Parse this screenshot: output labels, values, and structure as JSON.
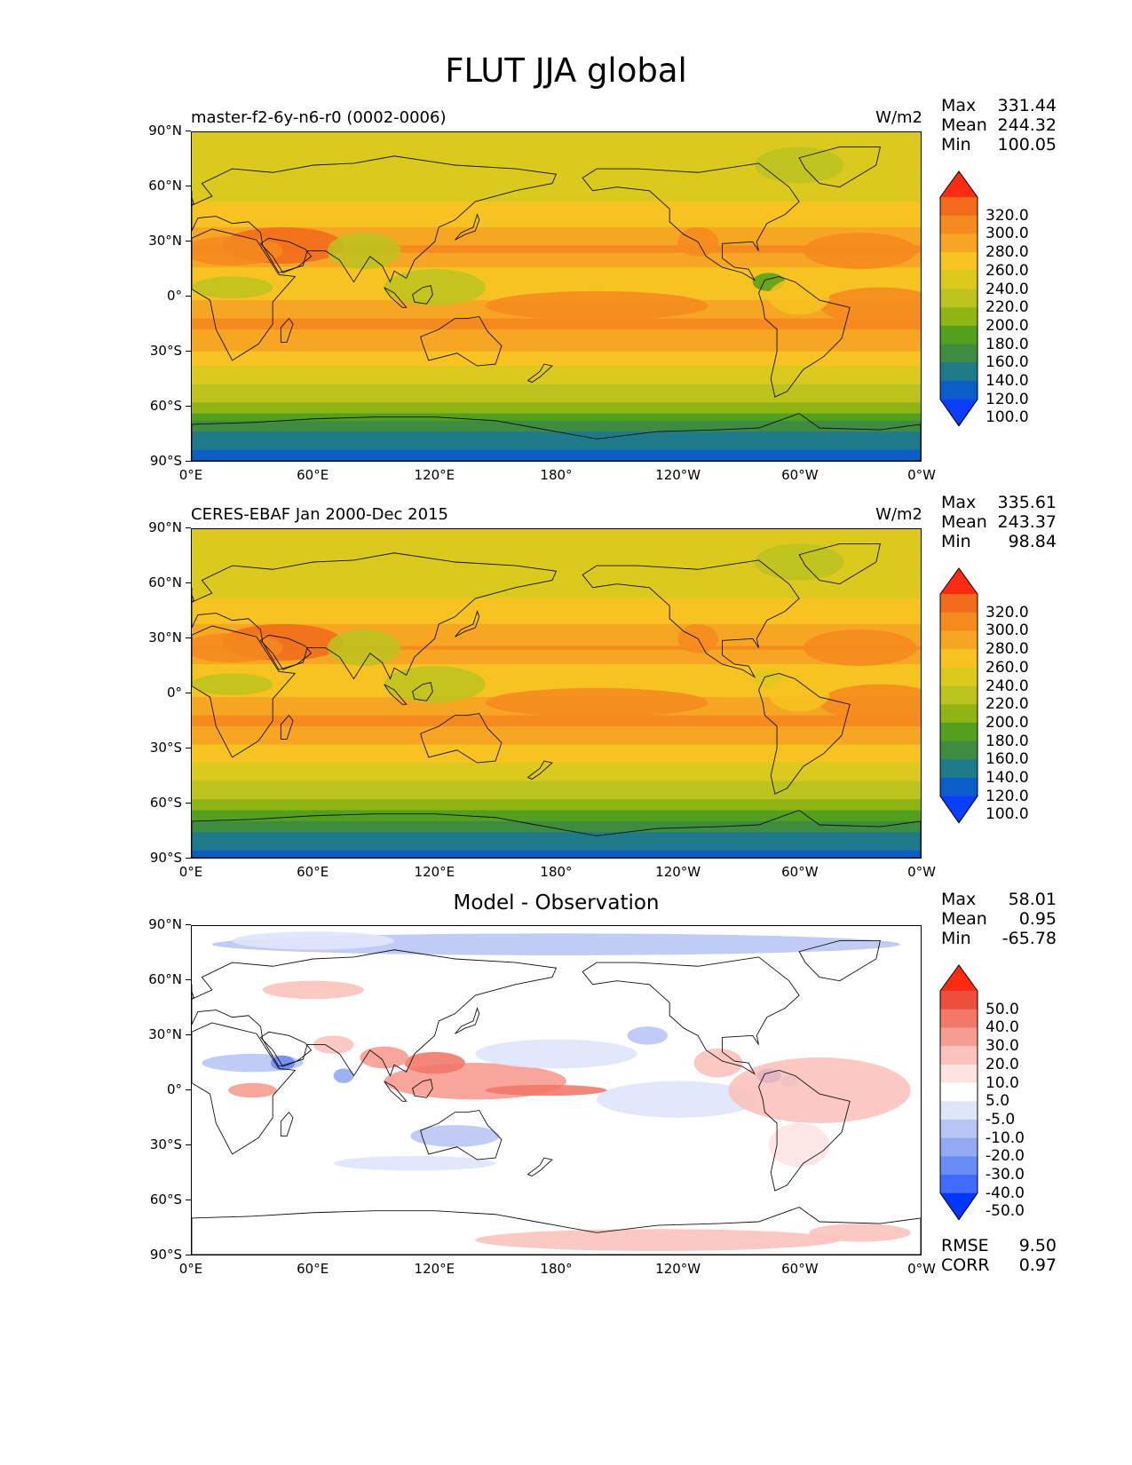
{
  "title": "FLUT JJA global",
  "y_ticks": [
    "90°N",
    "60°N",
    "30°N",
    "0°",
    "30°S",
    "60°S",
    "90°S"
  ],
  "x_ticks": [
    "0°E",
    "60°E",
    "120°E",
    "180°",
    "120°W",
    "60°W",
    "0°W"
  ],
  "panels": [
    {
      "title": "master-f2-6y-n6-r0 (0002-0006)",
      "units": "W/m2",
      "stats": {
        "max_label": "Max",
        "max": "331.44",
        "mean_label": "Mean",
        "mean": "244.32",
        "min_label": "Min",
        "min": "100.05"
      },
      "colorbar_labels": [
        "320.0",
        "300.0",
        "280.0",
        "260.0",
        "240.0",
        "220.0",
        "200.0",
        "180.0",
        "160.0",
        "140.0",
        "120.0",
        "100.0"
      ]
    },
    {
      "title": "CERES-EBAF Jan 2000-Dec 2015",
      "units": "W/m2",
      "stats": {
        "max_label": "Max",
        "max": "335.61",
        "mean_label": "Mean",
        "mean": "243.37",
        "min_label": "Min",
        "min": "98.84"
      },
      "colorbar_labels": [
        "320.0",
        "300.0",
        "280.0",
        "260.0",
        "240.0",
        "220.0",
        "200.0",
        "180.0",
        "160.0",
        "140.0",
        "120.0",
        "100.0"
      ]
    },
    {
      "title": "Model - Observation",
      "units": "",
      "stats": {
        "max_label": "Max",
        "max": "58.01",
        "mean_label": "Mean",
        "mean": "0.95",
        "min_label": "Min",
        "min": "-65.78"
      },
      "colorbar_labels": [
        "50.0",
        "40.0",
        "30.0",
        "20.0",
        "10.0",
        "5.0",
        "-5.0",
        "-10.0",
        "-20.0",
        "-30.0",
        "-40.0",
        "-50.0"
      ],
      "footer": {
        "rmse_label": "RMSE",
        "rmse": "9.50",
        "corr_label": "CORR",
        "corr": "0.97"
      }
    }
  ],
  "chart_data": [
    {
      "type": "heatmap",
      "title": "master-f2-6y-n6-r0 (0002-0006)",
      "units": "W/m2",
      "lon_range": [
        0,
        360
      ],
      "lat_range": [
        -90,
        90
      ],
      "levels": [
        100,
        120,
        140,
        160,
        180,
        200,
        220,
        240,
        260,
        280,
        300,
        320
      ],
      "colors": [
        "#0b3dff",
        "#0a5ec8",
        "#1f7a8a",
        "#3d8c40",
        "#52a01c",
        "#8fb515",
        "#bcc31f",
        "#dcc91e",
        "#f6c320",
        "#f6a623",
        "#f58a1e",
        "#f26a1b",
        "#ff2b10"
      ],
      "zonal_profile": [
        {
          "lat": 80,
          "value": 225
        },
        {
          "lat": 60,
          "value": 230
        },
        {
          "lat": 40,
          "value": 255
        },
        {
          "lat": 25,
          "value": 285
        },
        {
          "lat": 10,
          "value": 240
        },
        {
          "lat": 0,
          "value": 255
        },
        {
          "lat": -15,
          "value": 285
        },
        {
          "lat": -30,
          "value": 260
        },
        {
          "lat": -45,
          "value": 225
        },
        {
          "lat": -60,
          "value": 195
        },
        {
          "lat": -75,
          "value": 135
        },
        {
          "lat": -88,
          "value": 115
        }
      ],
      "stats": {
        "max": 331.44,
        "mean": 244.32,
        "min": 100.05
      }
    },
    {
      "type": "heatmap",
      "title": "CERES-EBAF Jan 2000-Dec 2015",
      "units": "W/m2",
      "lon_range": [
        0,
        360
      ],
      "lat_range": [
        -90,
        90
      ],
      "levels": [
        100,
        120,
        140,
        160,
        180,
        200,
        220,
        240,
        260,
        280,
        300,
        320
      ],
      "colors": [
        "#0b3dff",
        "#0a5ec8",
        "#1f7a8a",
        "#3d8c40",
        "#52a01c",
        "#8fb515",
        "#bcc31f",
        "#dcc91e",
        "#f6c320",
        "#f6a623",
        "#f58a1e",
        "#f26a1b",
        "#ff2b10"
      ],
      "zonal_profile": [
        {
          "lat": 80,
          "value": 222
        },
        {
          "lat": 60,
          "value": 228
        },
        {
          "lat": 40,
          "value": 255
        },
        {
          "lat": 25,
          "value": 280
        },
        {
          "lat": 10,
          "value": 245
        },
        {
          "lat": 0,
          "value": 258
        },
        {
          "lat": -15,
          "value": 285
        },
        {
          "lat": -30,
          "value": 258
        },
        {
          "lat": -45,
          "value": 225
        },
        {
          "lat": -60,
          "value": 195
        },
        {
          "lat": -75,
          "value": 140
        },
        {
          "lat": -88,
          "value": 115
        }
      ],
      "stats": {
        "max": 335.61,
        "mean": 243.37,
        "min": 98.84
      }
    },
    {
      "type": "heatmap",
      "title": "Model - Observation",
      "units": "",
      "lon_range": [
        0,
        360
      ],
      "lat_range": [
        -90,
        90
      ],
      "levels": [
        -50,
        -40,
        -30,
        -20,
        -10,
        -5,
        5,
        10,
        20,
        30,
        40,
        50
      ],
      "colors": [
        "#0037ff",
        "#3f6bff",
        "#6a8cf5",
        "#93aaf2",
        "#b9c6f5",
        "#dfe5fb",
        "#ffffff",
        "#fde3e0",
        "#fbc2bb",
        "#f79c90",
        "#f3786a",
        "#ee4f3d",
        "#ff2a10"
      ],
      "stats": {
        "max": 58.01,
        "mean": 0.95,
        "min": -65.78,
        "rmse": 9.5,
        "corr": 0.97
      }
    }
  ]
}
